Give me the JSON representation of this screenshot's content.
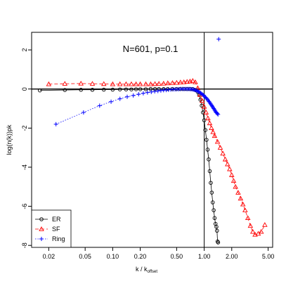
{
  "chart_data": {
    "type": "scatter",
    "title": "",
    "annotation": "N=601, p=0.1",
    "xlabel_main": "k / k",
    "xlabel_sub": "offset",
    "ylabel": "log(n(k))pk",
    "x_scale": "log",
    "xlim": [
      0.013,
      5.6
    ],
    "ylim": [
      -8.1,
      2.9
    ],
    "x_ticks": [
      0.02,
      0.05,
      0.1,
      0.2,
      0.5,
      1.0,
      2.0,
      5.0
    ],
    "x_tick_labels": [
      "0.02",
      "0.05",
      "0.10",
      "0.20",
      "0.50",
      "1.00",
      "2.00",
      "5.00"
    ],
    "y_ticks": [
      2,
      0,
      -2,
      -4,
      -6,
      -8
    ],
    "y_tick_labels": [
      "2",
      "0",
      "-2",
      "-4",
      "-6",
      "-8"
    ],
    "reference_lines": {
      "vertical_x": 1.0,
      "horizontal_y": 0
    },
    "legend": {
      "placement": "bottom-left",
      "entries": [
        "ER",
        "SF",
        "Ring"
      ]
    },
    "series": [
      {
        "name": "ER",
        "color": "#000000",
        "marker": "circle",
        "line_style": "solid",
        "x": [
          0.016,
          0.03,
          0.045,
          0.06,
          0.08,
          0.1,
          0.12,
          0.14,
          0.16,
          0.18,
          0.2,
          0.23,
          0.26,
          0.29,
          0.32,
          0.36,
          0.4,
          0.45,
          0.5,
          0.55,
          0.6,
          0.65,
          0.7,
          0.75,
          0.8,
          0.85,
          0.88,
          0.91,
          0.94,
          0.97,
          1.0,
          1.03,
          1.06,
          1.09,
          1.12,
          1.15,
          1.18,
          1.21,
          1.24,
          1.27,
          1.3,
          1.33,
          1.36,
          1.38,
          1.4,
          1.42
        ],
        "y": [
          -0.07,
          -0.05,
          -0.04,
          -0.04,
          -0.03,
          -0.03,
          -0.02,
          -0.02,
          -0.02,
          -0.01,
          -0.01,
          -0.01,
          0.0,
          0.0,
          0.0,
          0.0,
          0.0,
          0.0,
          0.0,
          0.0,
          0.0,
          0.0,
          0.0,
          0.0,
          -0.05,
          -0.15,
          -0.3,
          -0.55,
          -0.85,
          -1.2,
          -1.6,
          -2.1,
          -2.6,
          -3.1,
          -3.6,
          -4.2,
          -4.8,
          -5.3,
          -5.8,
          -6.2,
          -6.6,
          -6.9,
          -7.05,
          -7.25,
          -7.8,
          -7.85
        ]
      },
      {
        "name": "SF",
        "color": "#ff0000",
        "marker": "triangle",
        "line_style": "dashed",
        "x": [
          0.02,
          0.03,
          0.045,
          0.06,
          0.08,
          0.1,
          0.12,
          0.14,
          0.16,
          0.18,
          0.2,
          0.23,
          0.26,
          0.29,
          0.32,
          0.36,
          0.4,
          0.45,
          0.5,
          0.55,
          0.6,
          0.65,
          0.7,
          0.75,
          0.8,
          0.85,
          0.9,
          0.95,
          1.0,
          1.05,
          1.1,
          1.15,
          1.2,
          1.25,
          1.3,
          1.4,
          1.5,
          1.6,
          1.7,
          1.8,
          1.9,
          2.0,
          2.1,
          2.2,
          2.35,
          2.5,
          2.65,
          2.8,
          3.0,
          3.2,
          3.4,
          3.6,
          3.9,
          4.2,
          4.6
        ],
        "y": [
          0.25,
          0.27,
          0.28,
          0.27,
          0.26,
          0.25,
          0.25,
          0.25,
          0.25,
          0.25,
          0.25,
          0.25,
          0.25,
          0.26,
          0.27,
          0.28,
          0.3,
          0.31,
          0.32,
          0.34,
          0.35,
          0.37,
          0.39,
          0.42,
          0.35,
          0.05,
          -0.3,
          -0.6,
          -0.9,
          -1.2,
          -1.5,
          -1.75,
          -2.0,
          -2.2,
          -2.4,
          -2.7,
          -3.0,
          -3.3,
          -3.6,
          -3.85,
          -4.1,
          -4.4,
          -4.7,
          -5.0,
          -5.3,
          -5.6,
          -5.9,
          -6.2,
          -6.6,
          -7.0,
          -7.3,
          -7.45,
          -7.4,
          -7.3,
          -6.95
        ]
      },
      {
        "name": "Ring",
        "color": "#0000ff",
        "marker": "plus",
        "line_style": "dotted",
        "x": [
          0.024,
          0.048,
          0.072,
          0.096,
          0.12,
          0.144,
          0.168,
          0.192,
          0.216,
          0.24,
          0.264,
          0.288,
          0.312,
          0.336,
          0.36,
          0.384,
          0.408,
          0.432,
          0.456,
          0.48,
          0.504,
          0.528,
          0.552,
          0.576,
          0.6,
          0.624,
          0.648,
          0.672,
          0.696,
          0.72,
          0.744,
          0.768,
          0.792,
          0.816,
          0.84,
          0.864,
          0.888,
          0.912,
          0.936,
          0.96,
          0.984,
          1.008,
          1.032,
          1.056,
          1.08,
          1.104,
          1.128,
          1.152,
          1.176,
          1.2,
          1.224,
          1.248,
          1.272,
          1.296,
          1.32,
          1.344,
          1.368,
          1.392,
          1.416,
          1.44
        ],
        "y": [
          -1.8,
          -1.2,
          -0.85,
          -0.65,
          -0.5,
          -0.4,
          -0.33,
          -0.27,
          -0.22,
          -0.18,
          -0.15,
          -0.12,
          -0.1,
          -0.08,
          -0.06,
          -0.05,
          -0.04,
          -0.03,
          -0.02,
          -0.02,
          -0.01,
          -0.01,
          0.0,
          0.0,
          0.0,
          0.0,
          0.0,
          0.0,
          0.0,
          -0.01,
          -0.02,
          -0.03,
          -0.05,
          -0.07,
          -0.1,
          -0.13,
          -0.16,
          -0.2,
          -0.24,
          -0.28,
          -0.32,
          -0.37,
          -0.42,
          -0.47,
          -0.52,
          -0.58,
          -0.64,
          -0.7,
          -0.76,
          -0.82,
          -0.88,
          -0.94,
          -1.0,
          -1.06,
          -1.12,
          -1.18,
          -1.22,
          -1.26,
          -1.3,
          2.55
        ]
      }
    ]
  }
}
